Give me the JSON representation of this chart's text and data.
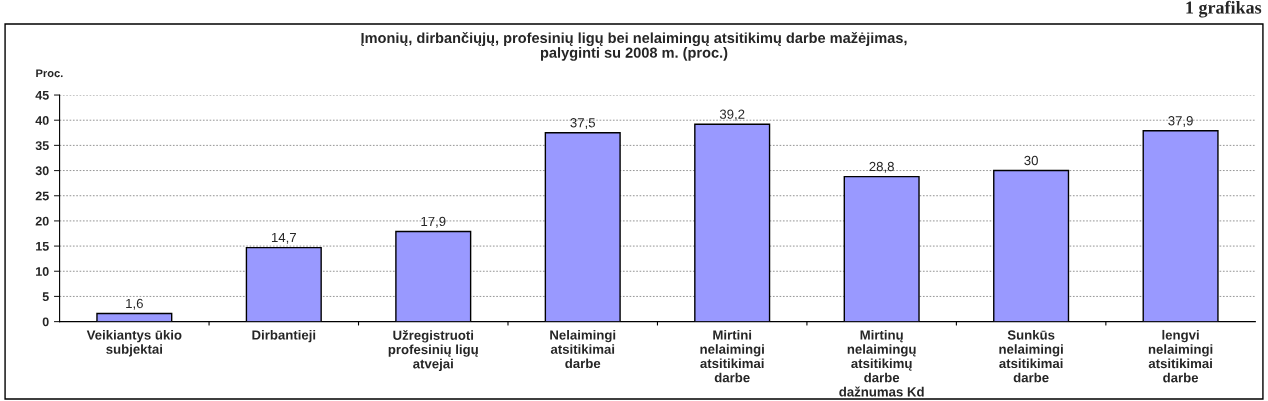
{
  "chart_data": {
    "type": "bar",
    "title": "Įmonių, dirbančiųjų, profesinių ligų bei nelaimingų atsitikimų darbe mažėjimas,\npalyginti su 2008 m. (proc.)",
    "ylabel": "Proc.",
    "annotations": [
      "1 grafikas"
    ],
    "categories": [
      "Veikiantys ūkio\nsubjektai",
      "Dirbantieji",
      "Užregistruoti\nprofesinių ligų\natvejai",
      "Nelaimingi\natsitikimai\ndarbe",
      "Mirtini\nnelaimingi\natsitikimai\ndarbe",
      "Mirtinų\nnelaimingų\natsitikimų\ndarbe\ndažnumas Kd",
      "Sunkūs\nnelaimingi\natsitikimai\ndarbe",
      "lengvi\nnelaimingi\natsitikimai\ndarbe"
    ],
    "values": [
      1.6,
      14.7,
      17.9,
      37.5,
      39.2,
      28.8,
      30,
      37.9
    ],
    "value_labels": [
      "1,6",
      "14,7",
      "17,9",
      "37,5",
      "39,2",
      "28,8",
      "30",
      "37,9"
    ],
    "color": "#9999ff",
    "ylim": [
      0,
      45
    ],
    "yticks": [
      0,
      5,
      10,
      15,
      20,
      25,
      30,
      35,
      40,
      45
    ],
    "grid": "y",
    "legend": false
  }
}
